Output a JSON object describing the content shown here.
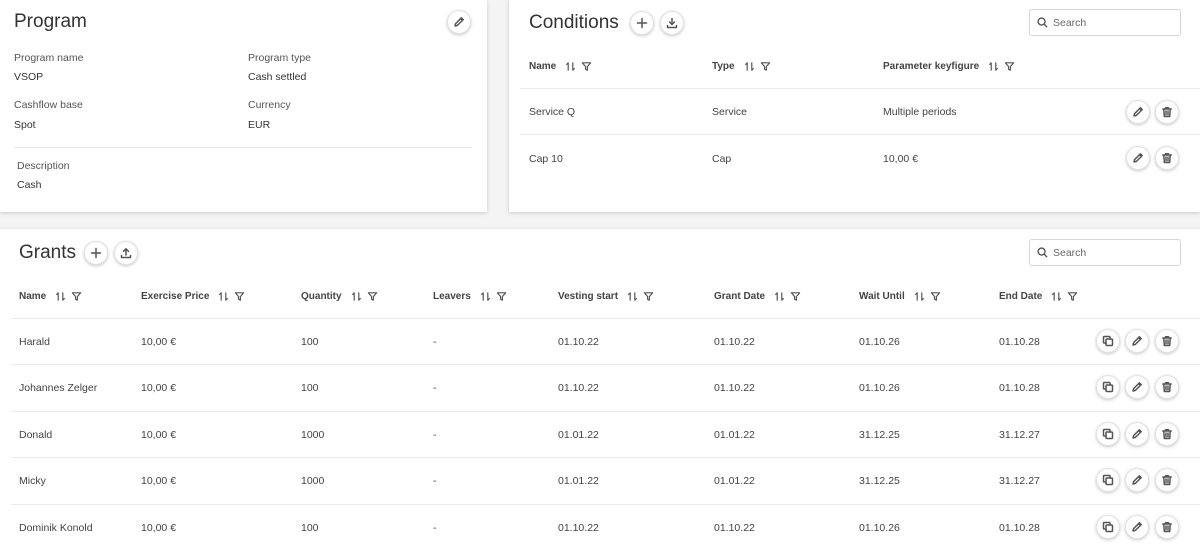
{
  "program": {
    "title": "Program",
    "fields": [
      {
        "label": "Program name",
        "value": "VSOP"
      },
      {
        "label": "Program type",
        "value": "Cash settled"
      },
      {
        "label": "Cashflow base",
        "value": "Spot"
      },
      {
        "label": "Currency",
        "value": "EUR"
      }
    ],
    "description": {
      "label": "Description",
      "value": "Cash"
    }
  },
  "conditions": {
    "title": "Conditions",
    "search_placeholder": "Search",
    "columns": [
      "Name",
      "Type",
      "Parameter keyfigure"
    ],
    "rows": [
      [
        "Service Q",
        "Service",
        "Multiple periods"
      ],
      [
        "Cap 10",
        "Cap",
        "10,00 €"
      ]
    ]
  },
  "grants": {
    "title": "Grants",
    "search_placeholder": "Search",
    "columns": [
      "Name",
      "Exercise Price",
      "Quantity",
      "Leavers",
      "Vesting start",
      "Grant Date",
      "Wait Until",
      "End Date"
    ],
    "rows": [
      [
        "Harald",
        "10,00 €",
        "100",
        "-",
        "01.10.22",
        "01.10.22",
        "01.10.26",
        "01.10.28"
      ],
      [
        "Johannes Zelger",
        "10,00 €",
        "100",
        "-",
        "01.10.22",
        "01.10.22",
        "01.10.26",
        "01.10.28"
      ],
      [
        "Donald",
        "10,00 €",
        "1000",
        "-",
        "01.01.22",
        "01.01.22",
        "31.12.25",
        "31.12.27"
      ],
      [
        "Micky",
        "10,00 €",
        "1000",
        "-",
        "01.01.22",
        "01.01.22",
        "31.12.25",
        "31.12.27"
      ],
      [
        "Dominik Konold",
        "10,00 €",
        "100",
        "-",
        "01.10.22",
        "01.10.22",
        "01.10.26",
        "01.10.28"
      ]
    ]
  },
  "icons": {
    "edit": "pencil-icon",
    "delete": "trash-icon",
    "copy": "copy-icon",
    "add": "plus-icon",
    "download": "download-icon",
    "upload": "upload-icon",
    "sort": "sort-icon",
    "filter": "filter-icon",
    "search": "search-icon"
  }
}
